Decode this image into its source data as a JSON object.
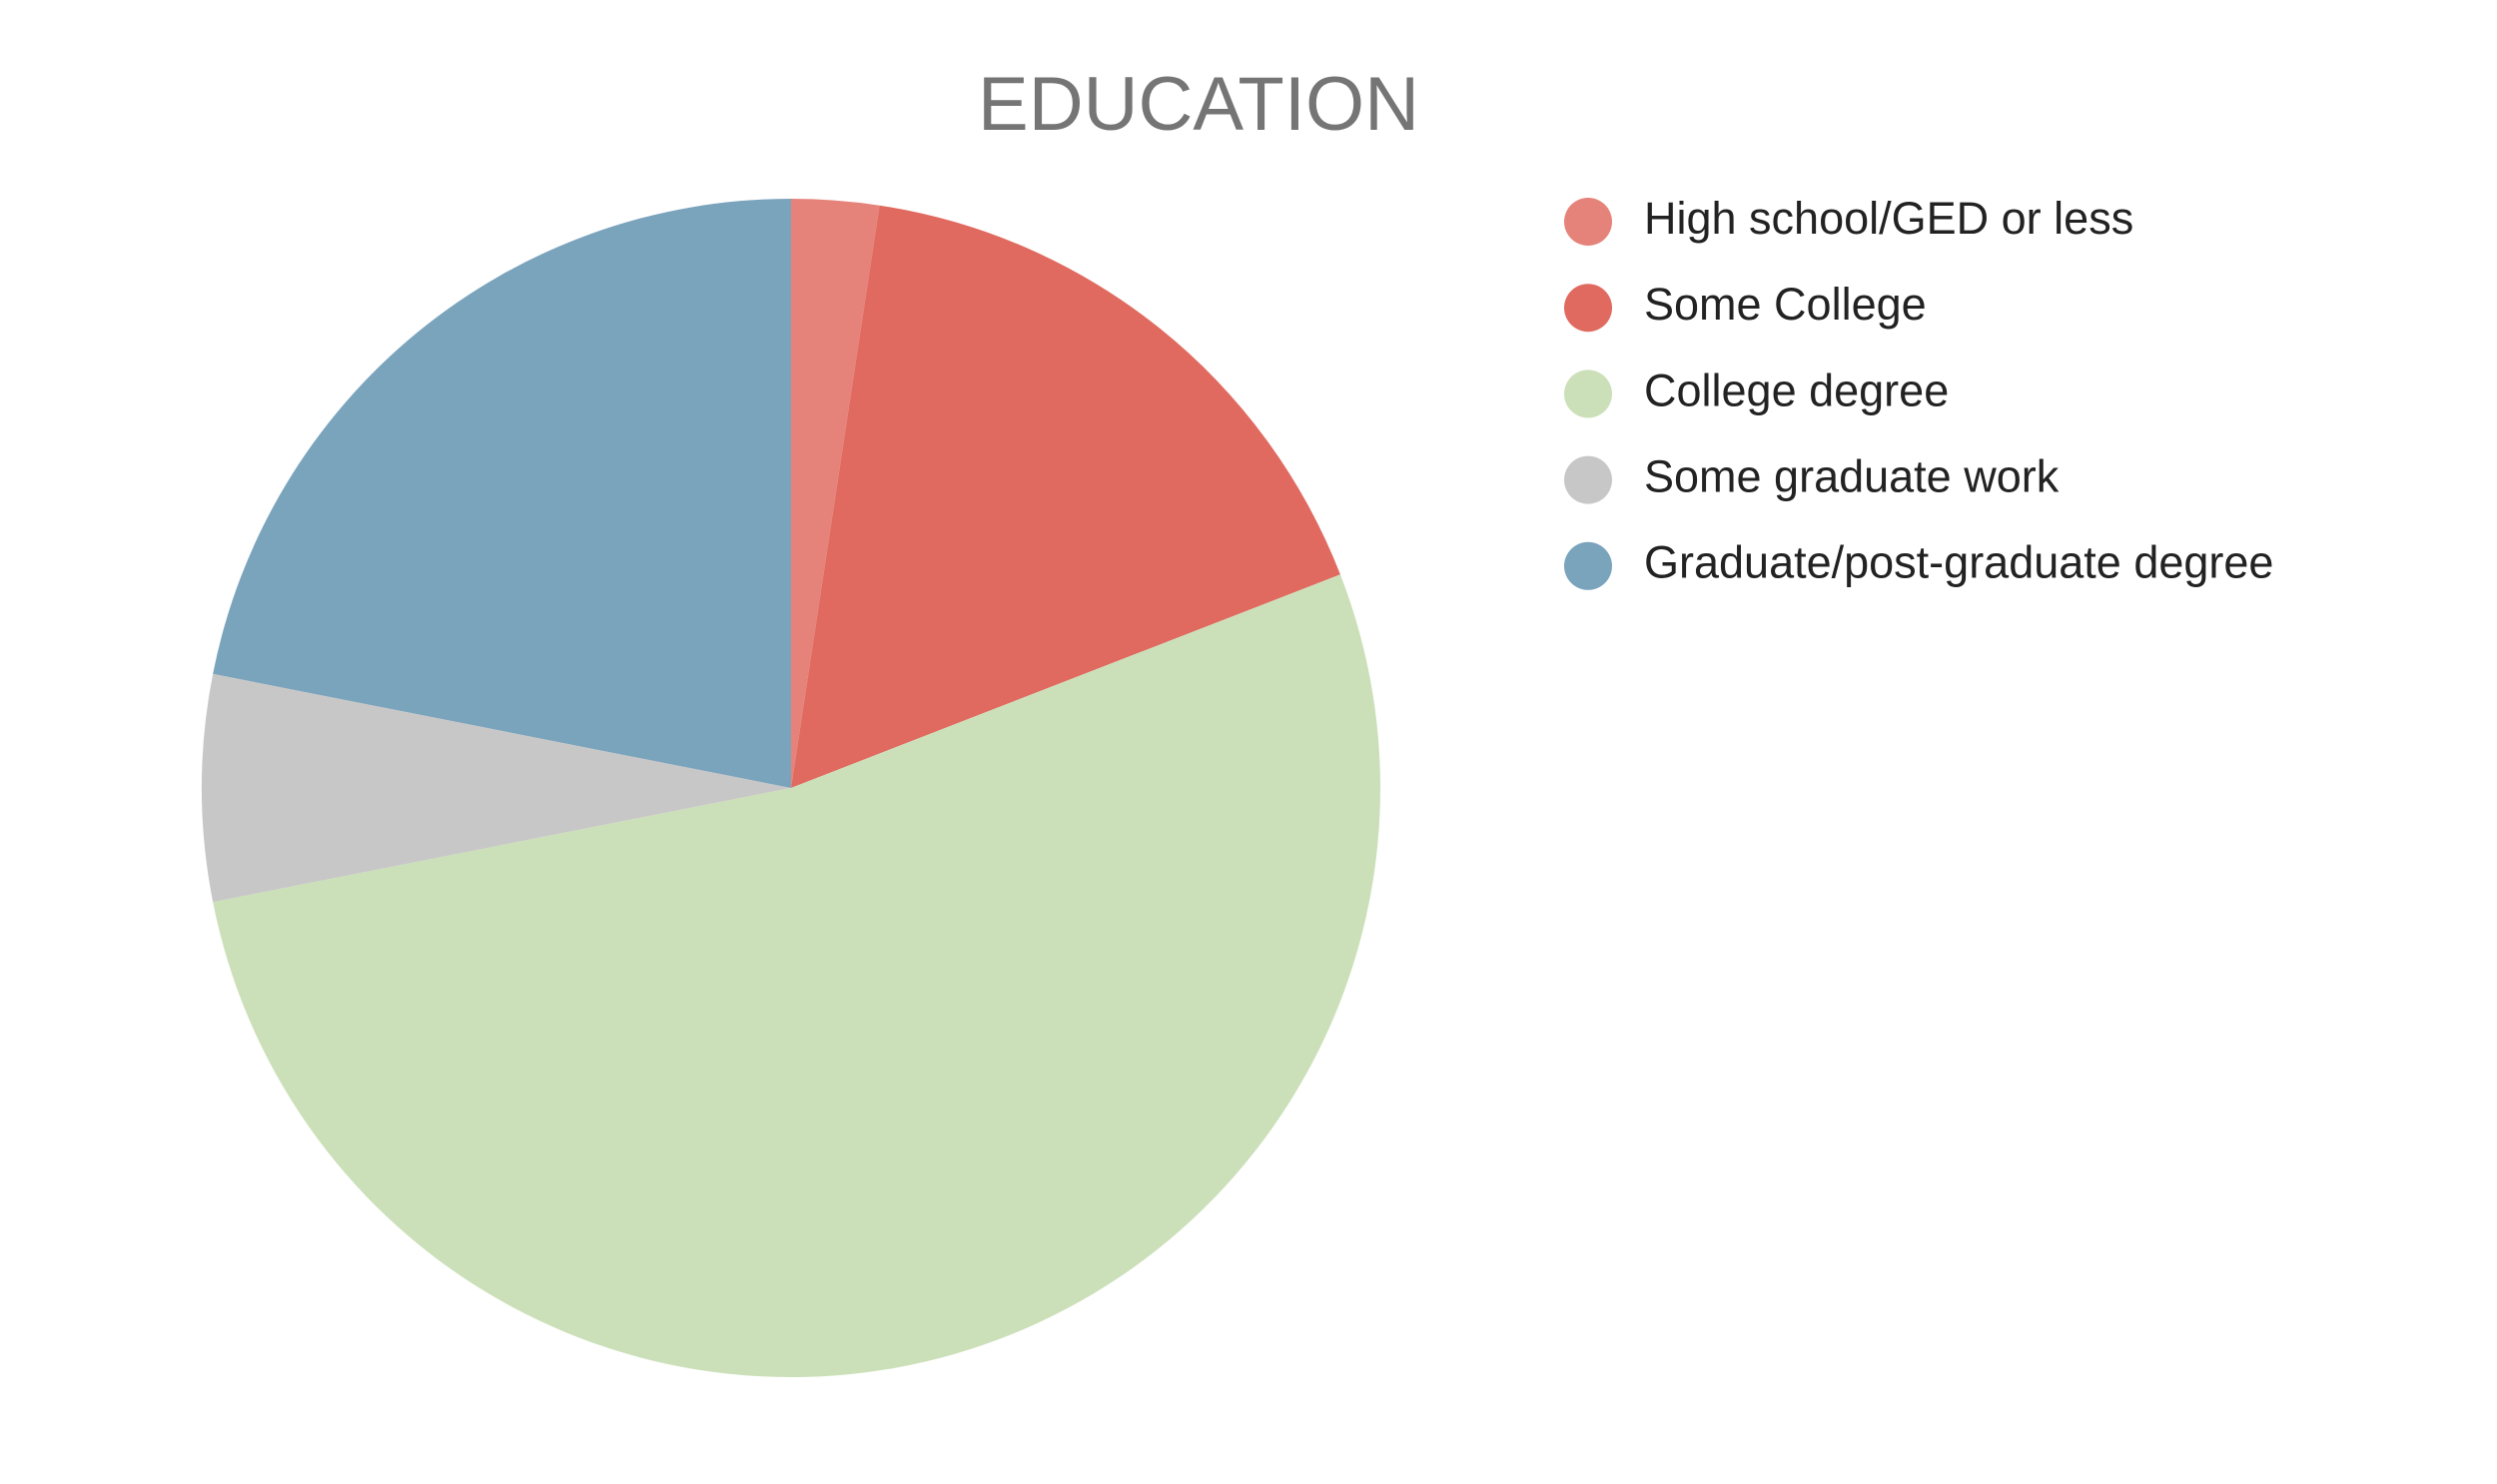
{
  "chart_data": {
    "type": "pie",
    "title": "EDUCATION",
    "categories": [
      "High school/GED or less",
      "Some College",
      "College degree",
      "Some graduate work",
      "Graduate/post-graduate degree"
    ],
    "values": [
      2.4,
      16.7,
      52.8,
      6.2,
      21.9
    ],
    "colors": [
      "#e5837b",
      "#e06a5f",
      "#cbe0b9",
      "#c8c7c7",
      "#7aa3bc"
    ],
    "legend": "right"
  }
}
